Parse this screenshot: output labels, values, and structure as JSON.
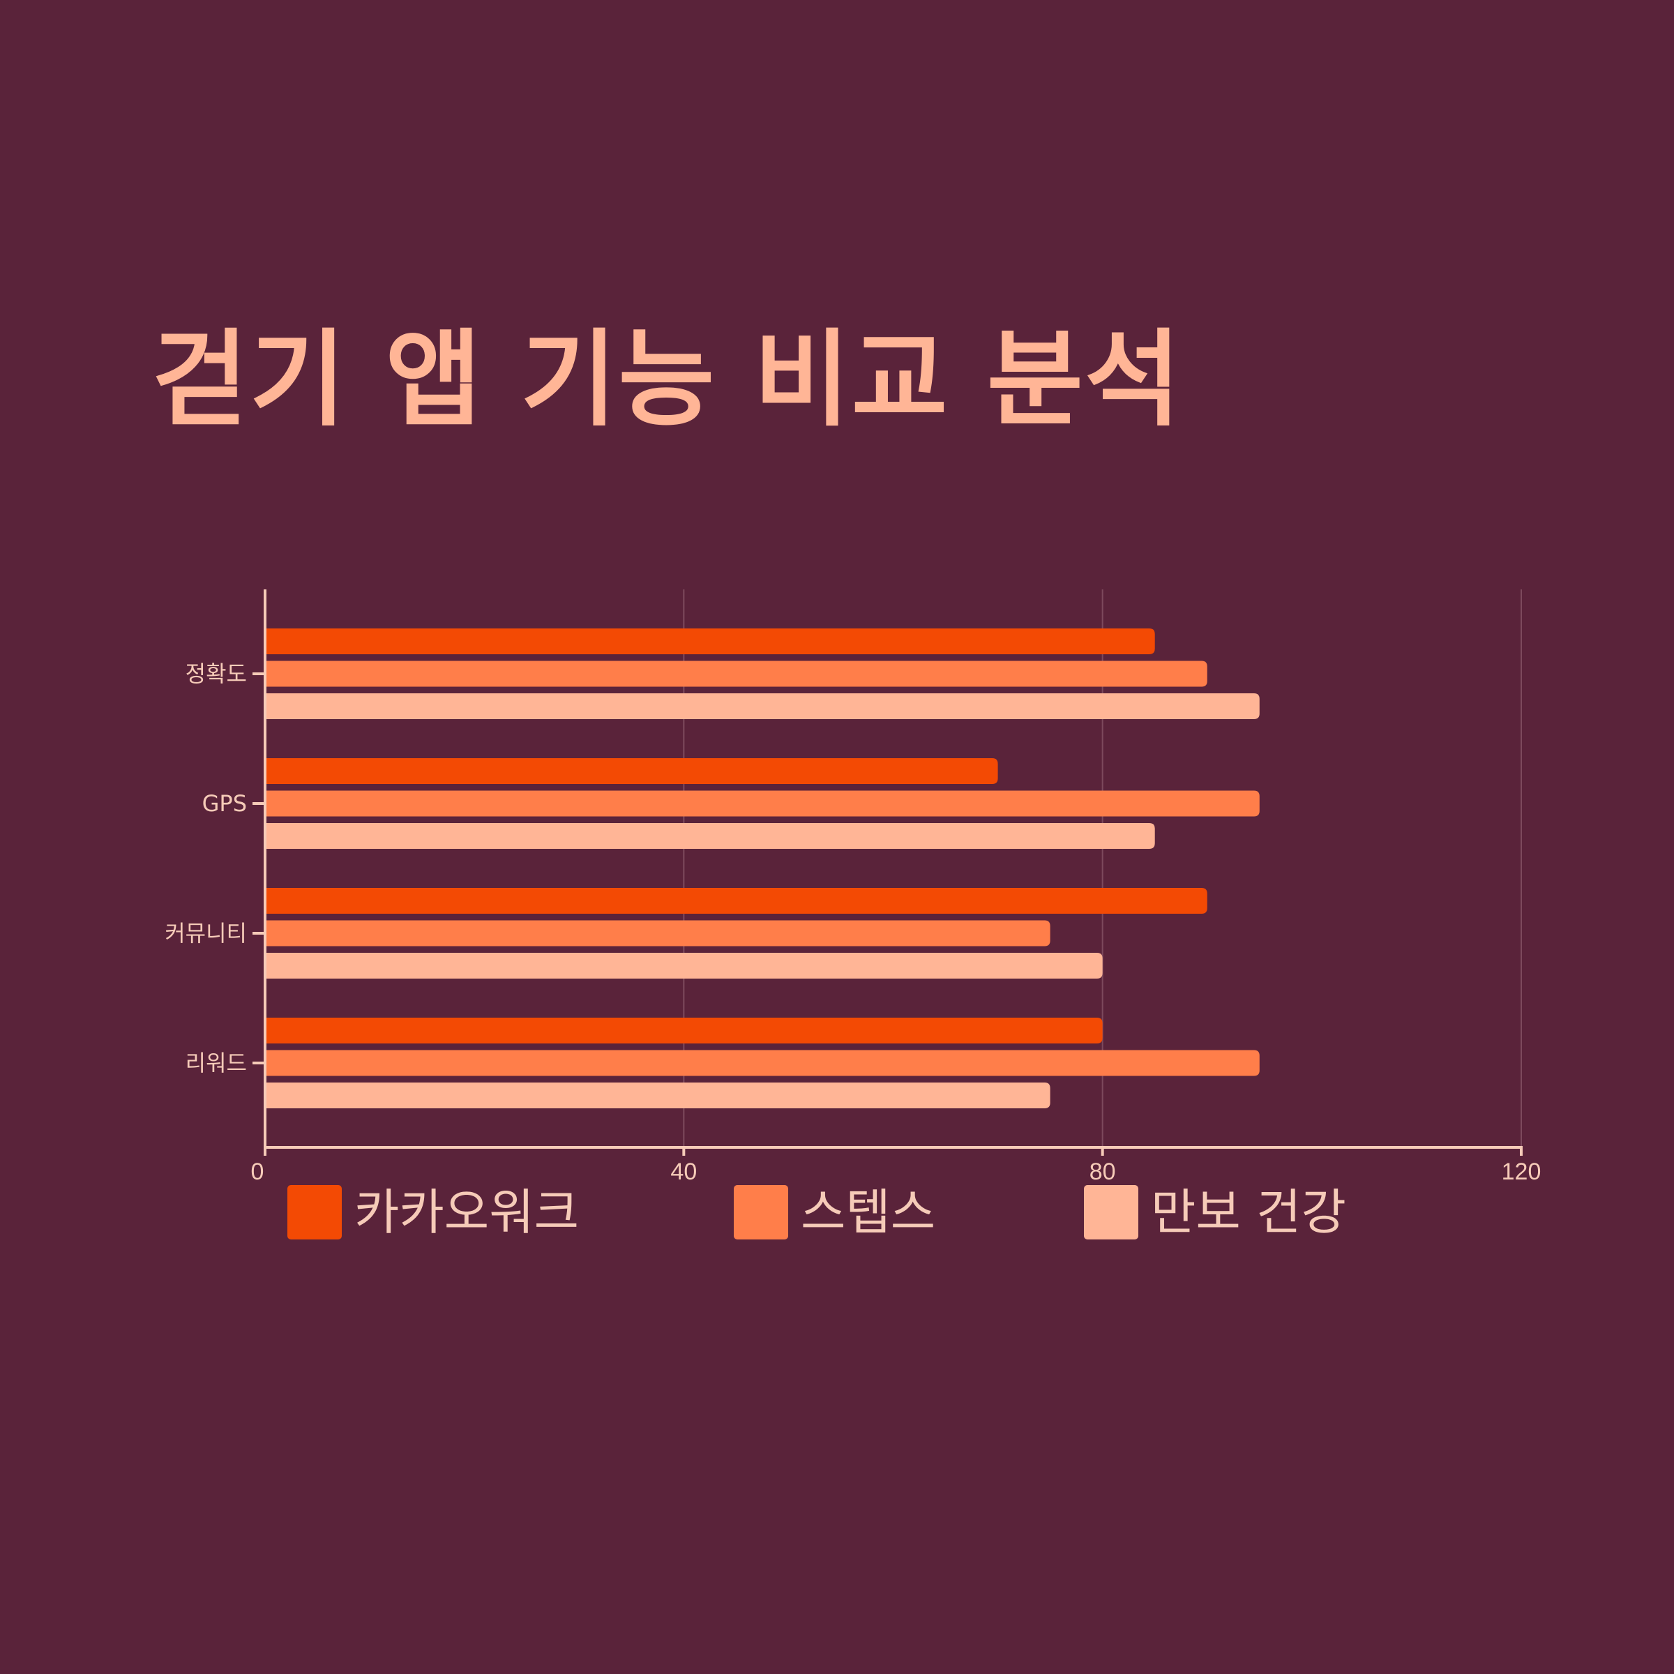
{
  "title": "걷기 앱 기능 비교 분석",
  "colors": {
    "background": "#5a233a",
    "title": "#ffb596",
    "axis": "#f6cbb8",
    "grid": "#7d4a5d"
  },
  "legend": {
    "items": [
      {
        "label": "카카오워크",
        "color": "#f34a04"
      },
      {
        "label": "스텝스",
        "color": "#ff7e4a"
      },
      {
        "label": "만보 건강",
        "color": "#ffb596"
      }
    ]
  },
  "chart_data": {
    "type": "bar",
    "orientation": "horizontal",
    "categories": [
      "정확도",
      "GPS",
      "커뮤니티",
      "리워드"
    ],
    "series": [
      {
        "name": "카카오워크",
        "color": "#f34a04",
        "values": [
          85,
          70,
          90,
          80
        ]
      },
      {
        "name": "스텝스",
        "color": "#ff7e4a",
        "values": [
          90,
          95,
          75,
          95
        ]
      },
      {
        "name": "만보 건강",
        "color": "#ffb596",
        "values": [
          95,
          85,
          80,
          75
        ]
      }
    ],
    "xlim": [
      0,
      120
    ],
    "xticks": [
      "0",
      "40",
      "80",
      "120"
    ],
    "grid": true,
    "legend_position": "bottom"
  }
}
